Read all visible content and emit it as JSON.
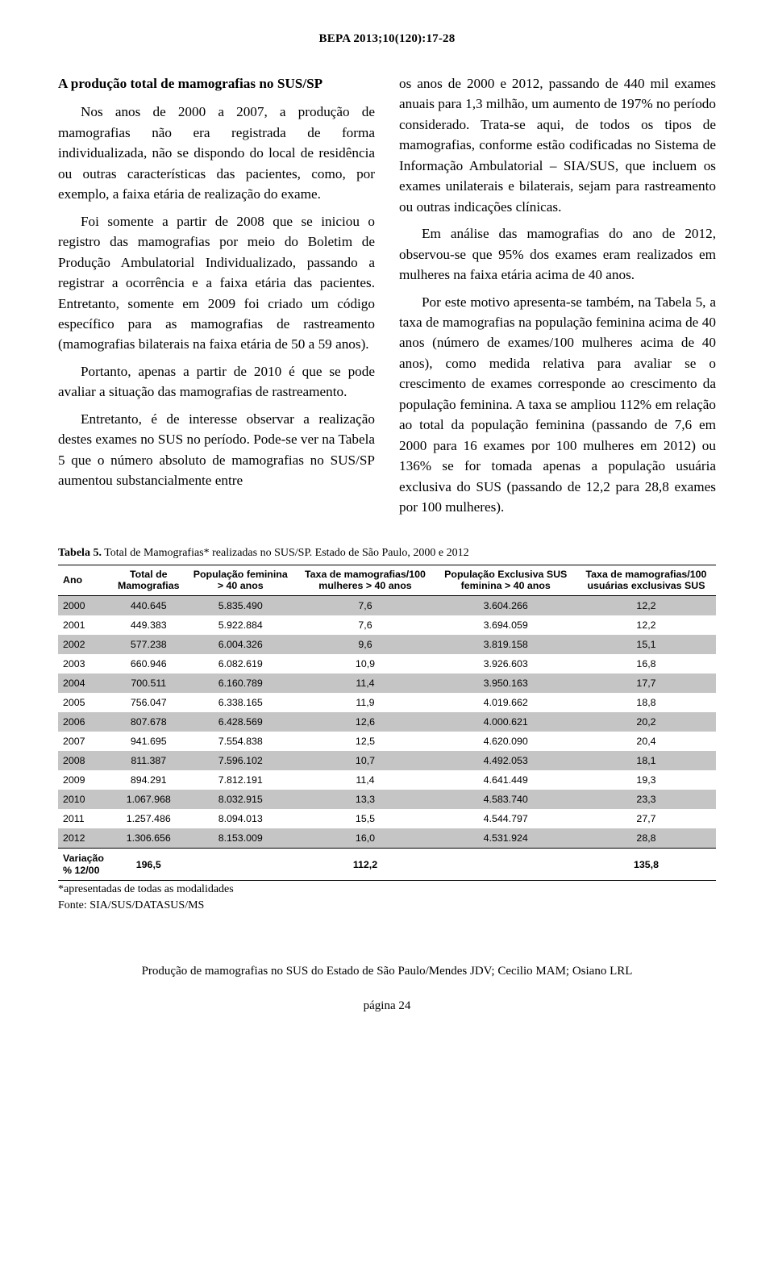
{
  "header": "BEPA 2013;10(120):17-28",
  "left": {
    "heading": "A produção total de mamografias no SUS/SP",
    "p1": "Nos anos de 2000 a 2007, a produção de mamografias não era registrada de forma individualizada, não se dispondo do local de residência ou outras características das pacientes, como, por exemplo, a faixa etária de realização do exame.",
    "p2": "Foi somente a partir de 2008 que se iniciou o registro das mamografias por meio do Boletim de Produção Ambulatorial Individualizado, passando a registrar a ocorrência e a faixa etária das pacientes. Entretanto, somente em 2009 foi criado um código específico para as mamografias de rastreamento (mamografias bilaterais na faixa etária de 50 a 59 anos).",
    "p3": "Portanto, apenas a partir de 2010 é que se pode avaliar a situação das mamografias de rastreamento.",
    "p4": "Entretanto, é de interesse observar a realização destes exames no SUS no período. Pode-se ver na Tabela 5 que o número absoluto de mamografias no SUS/SP aumentou substancialmente entre"
  },
  "right": {
    "p1": "os anos de 2000 e 2012, passando de 440 mil exames anuais para 1,3 milhão, um aumento de 197% no período considerado. Trata-se aqui, de todos os tipos de mamografias, conforme estão codificadas no Sistema de Informação Ambulatorial – SIA/SUS, que incluem os exames unilaterais e bilaterais, sejam para rastreamento ou outras indicações clínicas.",
    "p2": "Em análise das mamografias do ano de 2012, observou-se que 95% dos exames eram realizados em mulheres na faixa etária acima de 40 anos.",
    "p3": "Por este motivo apresenta-se também, na Tabela 5, a taxa de mamografias na população feminina acima de 40 anos (número de exames/100 mulheres acima de 40 anos), como medida relativa para avaliar se o crescimento de exames corresponde ao crescimento da população feminina. A taxa se ampliou 112% em relação ao total da população feminina (passando de 7,6 em 2000 para 16 exames por 100 mulheres em 2012) ou 136% se for tomada apenas a população usuária exclusiva do SUS (passando de 12,2 para 28,8 exames por 100 mulheres)."
  },
  "table": {
    "caption_bold": "Tabela 5.",
    "caption_rest": " Total de Mamografias* realizadas no SUS/SP. Estado de São Paulo, 2000 e 2012",
    "headers": [
      "Ano",
      "Total de\nMamografias",
      "População feminina\n> 40 anos",
      "Taxa de mamografias/100\nmulheres > 40 anos",
      "População Exclusiva SUS\nfeminina > 40 anos",
      "Taxa de mamografias/100\nusuárias exclusivas SUS"
    ],
    "rows": [
      {
        "shade": true,
        "cells": [
          "2000",
          "440.645",
          "5.835.490",
          "7,6",
          "3.604.266",
          "12,2"
        ]
      },
      {
        "shade": false,
        "cells": [
          "2001",
          "449.383",
          "5.922.884",
          "7,6",
          "3.694.059",
          "12,2"
        ]
      },
      {
        "shade": true,
        "cells": [
          "2002",
          "577.238",
          "6.004.326",
          "9,6",
          "3.819.158",
          "15,1"
        ]
      },
      {
        "shade": false,
        "cells": [
          "2003",
          "660.946",
          "6.082.619",
          "10,9",
          "3.926.603",
          "16,8"
        ]
      },
      {
        "shade": true,
        "cells": [
          "2004",
          "700.511",
          "6.160.789",
          "11,4",
          "3.950.163",
          "17,7"
        ]
      },
      {
        "shade": false,
        "cells": [
          "2005",
          "756.047",
          "6.338.165",
          "11,9",
          "4.019.662",
          "18,8"
        ]
      },
      {
        "shade": true,
        "cells": [
          "2006",
          "807.678",
          "6.428.569",
          "12,6",
          "4.000.621",
          "20,2"
        ]
      },
      {
        "shade": false,
        "cells": [
          "2007",
          "941.695",
          "7.554.838",
          "12,5",
          "4.620.090",
          "20,4"
        ]
      },
      {
        "shade": true,
        "cells": [
          "2008",
          "811.387",
          "7.596.102",
          "10,7",
          "4.492.053",
          "18,1"
        ]
      },
      {
        "shade": false,
        "cells": [
          "2009",
          "894.291",
          "7.812.191",
          "11,4",
          "4.641.449",
          "19,3"
        ]
      },
      {
        "shade": true,
        "cells": [
          "2010",
          "1.067.968",
          "8.032.915",
          "13,3",
          "4.583.740",
          "23,3"
        ]
      },
      {
        "shade": false,
        "cells": [
          "2011",
          "1.257.486",
          "8.094.013",
          "15,5",
          "4.544.797",
          "27,7"
        ]
      },
      {
        "shade": true,
        "cells": [
          "2012",
          "1.306.656",
          "8.153.009",
          "16,0",
          "4.531.924",
          "28,8"
        ]
      }
    ],
    "variacao_label": "Variação\n% 12/00",
    "variacao": [
      "196,5",
      "",
      "112,2",
      "",
      "135,8"
    ],
    "foot1": "*apresentadas de todas as modalidades",
    "foot2": "Fonte: SIA/SUS/DATASUS/MS"
  },
  "pagefoot": "Produção de mamografias no SUS do Estado de São Paulo/Mendes JDV; Cecilio MAM; Osiano LRL",
  "pagenum": "página 24"
}
